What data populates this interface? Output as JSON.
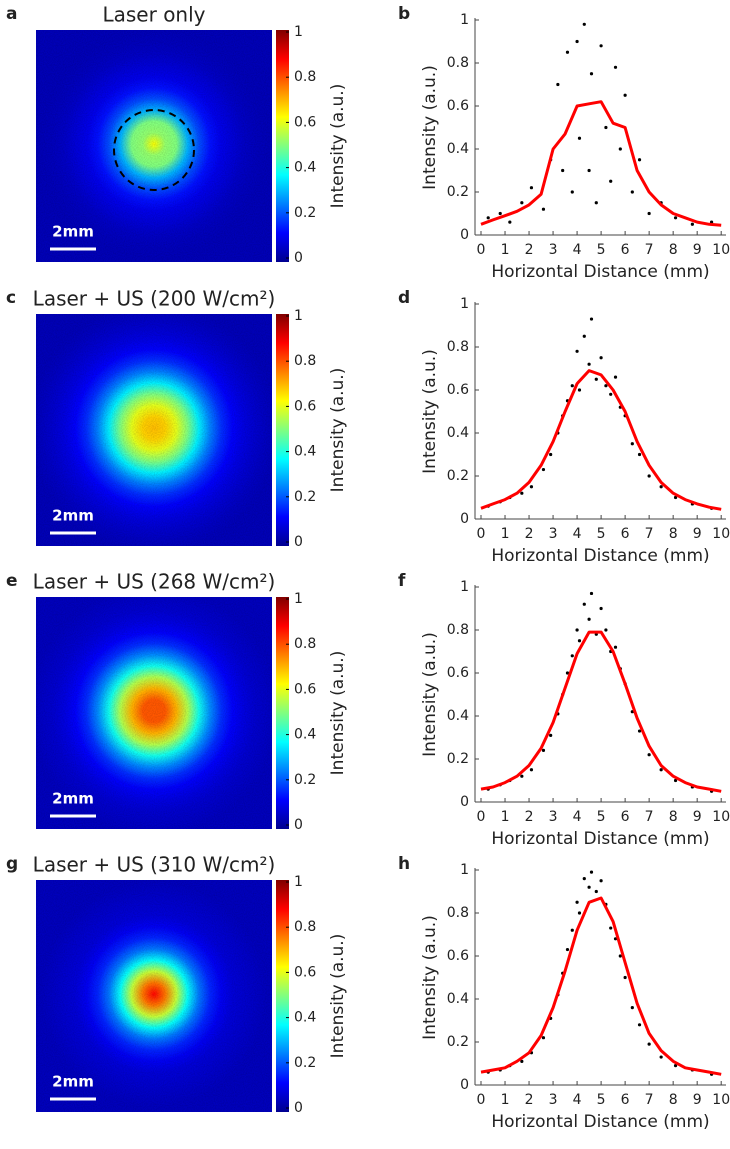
{
  "chart_data": [
    {
      "type": "heatmap",
      "panel": "a",
      "title": "Laser only",
      "colorbar_label": "Intensity (a.u.)",
      "clim": [
        0,
        1
      ],
      "cticks": [
        0,
        0.2,
        0.4,
        0.6,
        0.8,
        1
      ],
      "scale_bar": "2mm",
      "colormap": [
        "#00008f",
        "#0000ff",
        "#0080ff",
        "#00ffff",
        "#80ff80",
        "#ffff00",
        "#ff8000",
        "#ff0000",
        "#800000"
      ]
    },
    {
      "type": "scatter",
      "panel": "b",
      "xlabel": "Horizontal Distance (mm)",
      "ylabel": "Intensity (a.u.)",
      "xlim": [
        -0.25,
        10.2
      ],
      "ylim": [
        0,
        1
      ],
      "xticks": [
        0,
        1,
        2,
        3,
        4,
        5,
        6,
        7,
        8,
        9,
        10
      ],
      "yticks": [
        0,
        0.2,
        0.4,
        0.6,
        0.8,
        1
      ],
      "points": {
        "color": "#000000",
        "x": [
          0.3,
          0.8,
          1.2,
          1.7,
          2.1,
          2.6,
          2.9,
          3.2,
          3.4,
          3.6,
          3.8,
          4.0,
          4.1,
          4.3,
          4.5,
          4.6,
          4.8,
          5.0,
          5.2,
          5.4,
          5.6,
          5.8,
          6.0,
          6.3,
          6.6,
          7.0,
          7.5,
          8.1,
          8.8,
          9.6
        ],
        "y": [
          0.08,
          0.1,
          0.06,
          0.15,
          0.22,
          0.12,
          0.35,
          0.7,
          0.3,
          0.85,
          0.2,
          0.9,
          0.45,
          0.98,
          0.3,
          0.75,
          0.15,
          0.88,
          0.5,
          0.25,
          0.78,
          0.4,
          0.65,
          0.2,
          0.35,
          0.1,
          0.15,
          0.08,
          0.05,
          0.06
        ]
      },
      "fit": {
        "color": "#ff0000",
        "x": [
          0,
          0.5,
          1,
          1.5,
          2,
          2.5,
          3,
          3.5,
          4,
          4.5,
          5,
          5.5,
          6,
          6.5,
          7,
          7.5,
          8,
          8.5,
          9,
          9.5,
          10
        ],
        "values": [
          0.05,
          0.07,
          0.09,
          0.11,
          0.14,
          0.19,
          0.4,
          0.47,
          0.6,
          0.61,
          0.62,
          0.52,
          0.5,
          0.3,
          0.2,
          0.14,
          0.1,
          0.08,
          0.06,
          0.05,
          0.045
        ]
      }
    },
    {
      "type": "heatmap",
      "panel": "c",
      "title": "Laser + US (200 W/cm²)",
      "colorbar_label": "Intensity (a.u.)",
      "clim": [
        0,
        1
      ],
      "cticks": [
        0,
        0.2,
        0.4,
        0.6,
        0.8,
        1
      ],
      "scale_bar": "2mm",
      "colormap": [
        "#00008f",
        "#0000ff",
        "#0080ff",
        "#00ffff",
        "#80ff80",
        "#ffff00",
        "#ff8000",
        "#ff0000",
        "#800000"
      ]
    },
    {
      "type": "scatter",
      "panel": "d",
      "xlabel": "Horizontal Distance (mm)",
      "ylabel": "Intensity (a.u.)",
      "xlim": [
        -0.25,
        10.2
      ],
      "ylim": [
        0,
        1
      ],
      "xticks": [
        0,
        1,
        2,
        3,
        4,
        5,
        6,
        7,
        8,
        9,
        10
      ],
      "yticks": [
        0,
        0.2,
        0.4,
        0.6,
        0.8,
        1
      ],
      "points": {
        "color": "#000000",
        "x": [
          0.3,
          0.8,
          1.2,
          1.7,
          2.1,
          2.6,
          2.9,
          3.2,
          3.4,
          3.6,
          3.8,
          4.0,
          4.1,
          4.3,
          4.5,
          4.6,
          4.8,
          5.0,
          5.2,
          5.4,
          5.6,
          5.8,
          6.0,
          6.3,
          6.6,
          7.0,
          7.5,
          8.1,
          8.8,
          9.6
        ],
        "y": [
          0.06,
          0.08,
          0.1,
          0.12,
          0.15,
          0.23,
          0.3,
          0.4,
          0.48,
          0.55,
          0.62,
          0.78,
          0.6,
          0.85,
          0.72,
          0.93,
          0.65,
          0.75,
          0.62,
          0.58,
          0.66,
          0.52,
          0.48,
          0.35,
          0.3,
          0.2,
          0.15,
          0.1,
          0.07,
          0.05
        ]
      },
      "fit": {
        "color": "#ff0000",
        "x": [
          0,
          0.5,
          1,
          1.5,
          2,
          2.5,
          3,
          3.5,
          4,
          4.5,
          5,
          5.5,
          6,
          6.5,
          7,
          7.5,
          8,
          8.5,
          9,
          9.5,
          10
        ],
        "values": [
          0.05,
          0.07,
          0.09,
          0.12,
          0.17,
          0.25,
          0.36,
          0.5,
          0.63,
          0.69,
          0.67,
          0.6,
          0.5,
          0.36,
          0.25,
          0.17,
          0.12,
          0.09,
          0.07,
          0.055,
          0.045
        ]
      }
    },
    {
      "type": "heatmap",
      "panel": "e",
      "title": "Laser + US (268 W/cm²)",
      "colorbar_label": "Intensity (a.u.)",
      "clim": [
        0,
        1
      ],
      "cticks": [
        0,
        0.2,
        0.4,
        0.6,
        0.8,
        1
      ],
      "scale_bar": "2mm",
      "colormap": [
        "#00008f",
        "#0000ff",
        "#0080ff",
        "#00ffff",
        "#80ff80",
        "#ffff00",
        "#ff8000",
        "#ff0000",
        "#800000"
      ]
    },
    {
      "type": "scatter",
      "panel": "f",
      "xlabel": "Horizontal Distance (mm)",
      "ylabel": "Intensity (a.u.)",
      "xlim": [
        -0.25,
        10.2
      ],
      "ylim": [
        0,
        1
      ],
      "xticks": [
        0,
        1,
        2,
        3,
        4,
        5,
        6,
        7,
        8,
        9,
        10
      ],
      "yticks": [
        0,
        0.2,
        0.4,
        0.6,
        0.8,
        1
      ],
      "points": {
        "color": "#000000",
        "x": [
          0.3,
          0.8,
          1.2,
          1.7,
          2.1,
          2.6,
          2.9,
          3.2,
          3.4,
          3.6,
          3.8,
          4.0,
          4.1,
          4.3,
          4.5,
          4.6,
          4.8,
          5.0,
          5.2,
          5.4,
          5.6,
          5.8,
          6.0,
          6.3,
          6.6,
          7.0,
          7.5,
          8.1,
          8.8,
          9.6
        ],
        "y": [
          0.06,
          0.08,
          0.1,
          0.12,
          0.15,
          0.24,
          0.31,
          0.41,
          0.5,
          0.6,
          0.68,
          0.8,
          0.75,
          0.92,
          0.85,
          0.97,
          0.78,
          0.9,
          0.8,
          0.7,
          0.72,
          0.62,
          0.55,
          0.42,
          0.33,
          0.22,
          0.15,
          0.1,
          0.07,
          0.05
        ]
      },
      "fit": {
        "color": "#ff0000",
        "x": [
          0,
          0.5,
          1,
          1.5,
          2,
          2.5,
          3,
          3.5,
          4,
          4.5,
          5,
          5.5,
          6,
          6.5,
          7,
          7.5,
          8,
          8.5,
          9,
          9.5,
          10
        ],
        "values": [
          0.06,
          0.07,
          0.09,
          0.12,
          0.17,
          0.25,
          0.37,
          0.53,
          0.69,
          0.79,
          0.79,
          0.7,
          0.55,
          0.39,
          0.26,
          0.17,
          0.12,
          0.09,
          0.07,
          0.06,
          0.05
        ]
      }
    },
    {
      "type": "heatmap",
      "panel": "g",
      "title": "Laser + US (310 W/cm²)",
      "colorbar_label": "Intensity (a.u.)",
      "clim": [
        0,
        1
      ],
      "cticks": [
        0,
        0.2,
        0.4,
        0.6,
        0.8,
        1
      ],
      "scale_bar": "2mm",
      "colormap": [
        "#00008f",
        "#0000ff",
        "#0080ff",
        "#00ffff",
        "#80ff80",
        "#ffff00",
        "#ff8000",
        "#ff0000",
        "#800000"
      ]
    },
    {
      "type": "scatter",
      "panel": "h",
      "xlabel": "Horizontal Distance (mm)",
      "ylabel": "Intensity (a.u.)",
      "xlim": [
        -0.25,
        10.2
      ],
      "ylim": [
        0,
        1
      ],
      "xticks": [
        0,
        1,
        2,
        3,
        4,
        5,
        6,
        7,
        8,
        9,
        10
      ],
      "yticks": [
        0,
        0.2,
        0.4,
        0.6,
        0.8,
        1
      ],
      "points": {
        "color": "#000000",
        "x": [
          0.3,
          0.8,
          1.2,
          1.7,
          2.1,
          2.6,
          2.9,
          3.2,
          3.4,
          3.6,
          3.8,
          4.0,
          4.1,
          4.3,
          4.5,
          4.6,
          4.8,
          5.0,
          5.2,
          5.4,
          5.6,
          5.8,
          6.0,
          6.3,
          6.6,
          7.0,
          7.5,
          8.1,
          8.8,
          9.6
        ],
        "y": [
          0.06,
          0.07,
          0.09,
          0.11,
          0.15,
          0.22,
          0.31,
          0.42,
          0.52,
          0.63,
          0.72,
          0.85,
          0.8,
          0.96,
          0.92,
          0.99,
          0.9,
          0.95,
          0.84,
          0.73,
          0.68,
          0.6,
          0.5,
          0.36,
          0.28,
          0.19,
          0.13,
          0.09,
          0.07,
          0.05
        ]
      },
      "fit": {
        "color": "#ff0000",
        "x": [
          0,
          0.5,
          1,
          1.5,
          2,
          2.5,
          3,
          3.5,
          4,
          4.5,
          5,
          5.5,
          6,
          6.5,
          7,
          7.5,
          8,
          8.5,
          9,
          9.5,
          10
        ],
        "values": [
          0.06,
          0.07,
          0.08,
          0.11,
          0.15,
          0.23,
          0.36,
          0.53,
          0.72,
          0.85,
          0.87,
          0.76,
          0.57,
          0.38,
          0.24,
          0.16,
          0.11,
          0.08,
          0.07,
          0.06,
          0.05
        ]
      }
    }
  ]
}
